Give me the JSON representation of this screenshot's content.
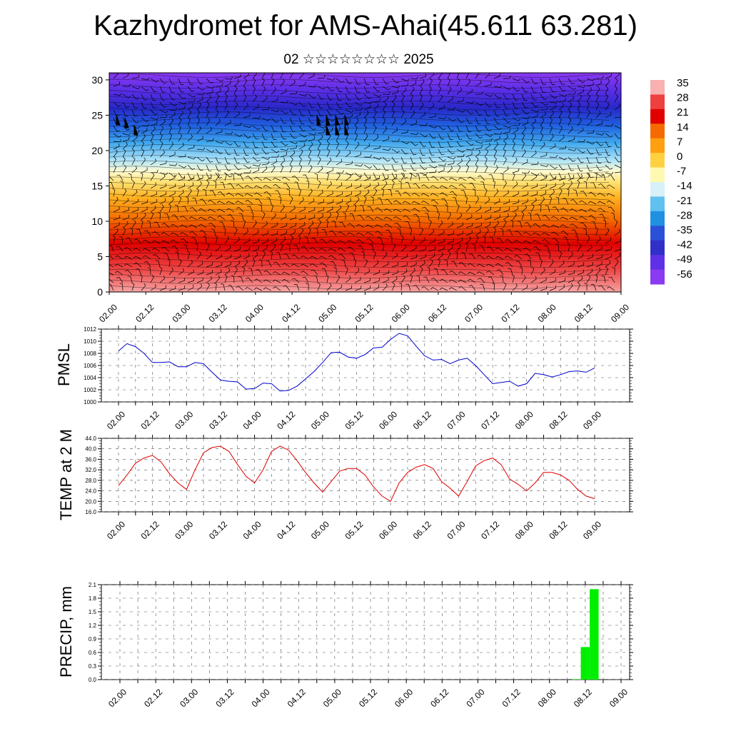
{
  "title": "Kazhydromet for AMS-Ahai(45.611 63.281)",
  "subtitle": "02 ☆☆☆☆☆☆☆☆ 2025",
  "colorbar": {
    "labels": [
      "35",
      "28",
      "21",
      "14",
      "7",
      "0",
      "-7",
      "-14",
      "-21",
      "-28",
      "-35",
      "-42",
      "-49",
      "-56"
    ],
    "colors": [
      "#f8b0b0",
      "#ef4040",
      "#e00000",
      "#f46a00",
      "#ffa010",
      "#ffd040",
      "#fff8b0",
      "#d8f0f8",
      "#60c0f0",
      "#2090e0",
      "#2a50d8",
      "#3030c8",
      "#6030e8",
      "#8a3af0"
    ]
  },
  "x_ticks": [
    "02.00",
    "02.12",
    "03.00",
    "03.12",
    "04.00",
    "04.12",
    "05.00",
    "05.12",
    "06.00",
    "06.12",
    "07.00",
    "07.12",
    "08.00",
    "08.12",
    "09.00"
  ],
  "chart_data": [
    {
      "type": "heatmap",
      "name": "vertical-cross-section",
      "x_ticks": [
        "02.00",
        "02.12",
        "03.00",
        "03.12",
        "04.00",
        "04.12",
        "05.00",
        "05.12",
        "06.00",
        "06.12",
        "07.00",
        "07.12",
        "08.00",
        "08.12",
        "09.00"
      ],
      "y_ticks": [
        "0",
        "5",
        "10",
        "15",
        "20",
        "25",
        "30"
      ],
      "ylim": [
        0,
        31
      ],
      "colorbar_range": [
        -56,
        35
      ],
      "overlay": "wind barbs"
    },
    {
      "type": "line",
      "ylabel": "PMSL",
      "ylim": [
        1000,
        1012
      ],
      "y_ticks": [
        "1000",
        "1002",
        "1004",
        "1006",
        "1008",
        "1010",
        "1012"
      ],
      "x_ticks": [
        "02.00",
        "02.12",
        "03.00",
        "03.12",
        "04.00",
        "04.12",
        "05.00",
        "05.12",
        "06.00",
        "06.12",
        "07.00",
        "07.12",
        "08.00",
        "08.12",
        "09.00"
      ],
      "x": [
        0,
        1,
        2,
        3,
        4,
        5,
        6,
        7,
        8,
        9,
        10,
        11,
        12,
        13,
        14,
        15,
        16,
        17,
        18,
        19,
        20,
        21,
        22,
        23,
        24,
        25,
        26,
        27,
        28,
        29,
        30,
        31,
        32,
        33,
        34,
        35,
        36,
        37,
        38,
        39,
        40,
        41,
        42,
        43,
        44,
        45,
        46,
        47,
        48,
        49,
        50,
        51,
        52,
        53,
        54,
        55,
        56
      ],
      "series": [
        {
          "color": "#0000cc",
          "values": [
            1008.4,
            1009.6,
            1009.1,
            1008.0,
            1006.5,
            1006.5,
            1006.6,
            1005.8,
            1005.8,
            1006.5,
            1006.3,
            1004.9,
            1003.6,
            1003.4,
            1003.3,
            1002.1,
            1002.2,
            1003.1,
            1003.0,
            1001.8,
            1001.9,
            1002.6,
            1003.8,
            1005.0,
            1006.5,
            1008.1,
            1008.2,
            1007.4,
            1007.2,
            1007.8,
            1008.9,
            1009.0,
            1010.3,
            1011.3,
            1010.9,
            1009.2,
            1007.6,
            1006.9,
            1007.0,
            1006.3,
            1006.9,
            1007.2,
            1006.0,
            1004.5,
            1003.0,
            1003.2,
            1003.4,
            1002.6,
            1003.0,
            1004.7,
            1004.5,
            1004.1,
            1004.5,
            1005.0,
            1005.1,
            1004.9,
            1005.6
          ]
        }
      ]
    },
    {
      "type": "line",
      "ylabel": "TEMP at 2 M",
      "ylim": [
        16,
        44
      ],
      "y_ticks": [
        "16.0",
        "20.0",
        "24.0",
        "28.0",
        "32.0",
        "36.0",
        "40.0",
        "44.0"
      ],
      "x_ticks": [
        "02.00",
        "02.12",
        "03.00",
        "03.12",
        "04.00",
        "04.12",
        "05.00",
        "05.12",
        "06.00",
        "06.12",
        "07.00",
        "07.12",
        "08.00",
        "08.12",
        "09.00"
      ],
      "x": [
        0,
        1,
        2,
        3,
        4,
        5,
        6,
        7,
        8,
        9,
        10,
        11,
        12,
        13,
        14,
        15,
        16,
        17,
        18,
        19,
        20,
        21,
        22,
        23,
        24,
        25,
        26,
        27,
        28,
        29,
        30,
        31,
        32,
        33,
        34,
        35,
        36,
        37,
        38,
        39,
        40,
        41,
        42,
        43,
        44,
        45,
        46,
        47,
        48,
        49,
        50,
        51,
        52,
        53,
        54,
        55,
        56
      ],
      "series": [
        {
          "color": "#dd0000",
          "values": [
            26.0,
            30.0,
            34.5,
            36.5,
            37.5,
            35.0,
            30.5,
            27.0,
            24.5,
            32.0,
            38.5,
            40.5,
            41.0,
            39.0,
            34.0,
            29.5,
            27.0,
            32.0,
            39.0,
            41.0,
            39.5,
            35.5,
            31.0,
            27.0,
            23.5,
            27.5,
            31.5,
            32.5,
            32.5,
            30.0,
            25.5,
            22.0,
            20.0,
            27.0,
            31.0,
            33.0,
            34.0,
            32.5,
            27.5,
            25.0,
            22.0,
            27.5,
            33.5,
            35.5,
            36.5,
            34.0,
            28.5,
            26.5,
            24.0,
            27.0,
            31.0,
            31.0,
            30.0,
            28.0,
            24.5,
            22.0,
            21.0
          ]
        }
      ]
    },
    {
      "type": "bar",
      "ylabel": "PRECIP, mm",
      "ylim": [
        0,
        2.1
      ],
      "y_ticks": [
        "0.0",
        "0.3",
        "0.6",
        "0.9",
        "1.2",
        "1.5",
        "1.8",
        "2.1"
      ],
      "x_ticks": [
        "02.00",
        "02.12",
        "03.00",
        "03.12",
        "04.00",
        "04.12",
        "05.00",
        "05.12",
        "06.00",
        "06.12",
        "07.00",
        "07.12",
        "08.00",
        "08.12",
        "09.00"
      ],
      "bar_color": "#00ee00",
      "x": [
        51,
        52,
        53
      ],
      "values": [
        0.01,
        0.72,
        2.0
      ]
    }
  ]
}
